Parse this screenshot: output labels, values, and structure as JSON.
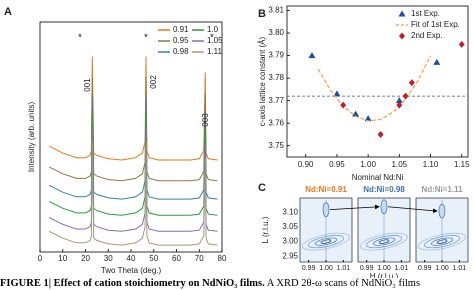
{
  "chart_data": [
    {
      "type": "line",
      "label": "A",
      "xlabel": "Two Theta (deg.)",
      "ylabel": "Intensity (arb. units)",
      "xlim": [
        0,
        80
      ],
      "xticks": [
        0,
        10,
        20,
        30,
        40,
        50,
        60,
        70,
        80
      ],
      "ylim": [
        0,
        100
      ],
      "x": [
        4,
        10,
        16,
        20,
        22,
        22.6,
        23,
        23.6,
        25,
        30,
        36,
        42,
        45,
        46.2,
        46.6,
        47,
        48,
        52,
        60,
        66,
        70,
        72,
        72.6,
        73,
        74,
        78
      ],
      "series": [
        {
          "name": "0.91",
          "color": "#e07a1f",
          "values": [
            46,
            43,
            41,
            41,
            42,
            44,
            85,
            43,
            42,
            40.5,
            40,
            41,
            43,
            48,
            85,
            44,
            41,
            40,
            40,
            40,
            40.5,
            44,
            78,
            43,
            40.5,
            40
          ]
        },
        {
          "name": "0.95",
          "color": "#8c7a4a",
          "values": [
            37,
            34,
            32,
            32,
            33,
            35,
            76,
            34,
            33,
            31.5,
            31,
            32,
            34,
            39,
            76,
            35,
            32,
            31,
            31,
            31,
            31.5,
            35,
            69,
            34,
            31.5,
            31
          ]
        },
        {
          "name": "0.98",
          "color": "#3a7fa8",
          "values": [
            29,
            26,
            24,
            24,
            25,
            27,
            68,
            26,
            25,
            23.5,
            23,
            24,
            26,
            31,
            68,
            27,
            24,
            23,
            23,
            23,
            23.5,
            27,
            61,
            26,
            23.5,
            23
          ]
        },
        {
          "name": "1.0",
          "color": "#2e9a3c",
          "values": [
            22,
            19,
            17,
            17,
            18,
            20,
            61,
            19,
            18,
            16.5,
            16,
            17,
            19,
            24,
            61,
            20,
            17,
            16,
            16,
            16,
            16.5,
            20,
            54,
            19,
            16.5,
            16
          ]
        },
        {
          "name": "1.05",
          "color": "#8b6bb0",
          "values": [
            15,
            12,
            10,
            10,
            11,
            13,
            54,
            12,
            11,
            9.5,
            9,
            10,
            12,
            17,
            54,
            13,
            10,
            9,
            9,
            9,
            9.5,
            13,
            47,
            12,
            9.5,
            9
          ]
        },
        {
          "name": "1.11",
          "color": "#a09a80",
          "values": [
            9,
            6,
            4,
            4,
            5,
            7,
            48,
            6,
            5,
            3.5,
            3,
            4,
            6,
            11,
            48,
            7,
            4,
            3,
            3,
            3,
            3.5,
            7,
            41,
            6,
            3.5,
            3
          ]
        }
      ],
      "annotations": [
        "*",
        "*",
        "*",
        "001",
        "002",
        "003"
      ]
    },
    {
      "type": "scatter",
      "label": "B",
      "xlabel": "Nominal Nd:Ni",
      "ylabel": "c-axis lattice constant (Å)",
      "xlim": [
        0.87,
        1.16
      ],
      "xticks": [
        {
          "value": 0.9,
          "label": "0.90"
        },
        0.95,
        {
          "value": 1,
          "label": "1.00"
        },
        1.05,
        {
          "value": 1.1,
          "label": "1.10"
        },
        1.15
      ],
      "ylim": [
        3.745,
        3.812
      ],
      "yticks": [
        3.75,
        3.76,
        3.77,
        3.78,
        3.79,
        {
          "value": 3.8,
          "label": "3.80"
        },
        3.81
      ],
      "reference_line": 3.772,
      "series": [
        {
          "name": "1st Exp.",
          "color": "#1f4e9a",
          "marker": "triangle",
          "x": [
            0.91,
            0.95,
            0.98,
            1,
            1.05,
            1.11
          ],
          "values": [
            3.79,
            3.773,
            3.764,
            3.762,
            3.77,
            3.787
          ]
        },
        {
          "name": "Fit of 1st Exp.",
          "color": "#f0a050",
          "marker": "dashed-line",
          "x": [
            0.92,
            0.94,
            0.96,
            0.98,
            1,
            1.02,
            1.04,
            1.06,
            1.08,
            1.1
          ],
          "values": [
            3.784,
            3.7745,
            3.7675,
            3.763,
            3.761,
            3.7617,
            3.7649,
            3.7707,
            3.779,
            3.7899
          ]
        },
        {
          "name": "2nd Exp.",
          "color": "#c0202a",
          "marker": "diamond",
          "x": [
            0.96,
            1.02,
            1.05,
            1.06,
            1.07,
            1.15
          ],
          "values": [
            3.768,
            3.755,
            3.768,
            3.772,
            3.778,
            3.795
          ]
        }
      ]
    },
    {
      "type": "map",
      "label": "C",
      "xlabel": "H (r.l.u.)",
      "ylabel": "L (r.l.u.)",
      "xlim": [
        0.985,
        1.015
      ],
      "xticks": [
        0.99,
        {
          "value": 1,
          "label": "1.00"
        },
        1.01
      ],
      "ylim": [
        2.93,
        3.15
      ],
      "yticks": [
        2.95,
        {
          "value": 3,
          "label": "3.00"
        },
        3.05,
        {
          "value": 3.1,
          "label": "3.10"
        }
      ],
      "maps": [
        {
          "title": "Nd:Ni=0.91",
          "color": "#e07a1f",
          "film_L": 3.11
        },
        {
          "title": "Nd:Ni=0.98",
          "color": "#3a6fb0",
          "film_L": 3.12
        },
        {
          "title": "Nd:Ni=1.11",
          "color": "#999999",
          "film_L": 3.105
        }
      ]
    }
  ],
  "caption": {
    "bold": "FIGURE 1| Effect of cation stoichiometry on NdNiO₃ films.",
    "text": "A XRD 2θ-ω scans of NdNiO₃ films"
  }
}
